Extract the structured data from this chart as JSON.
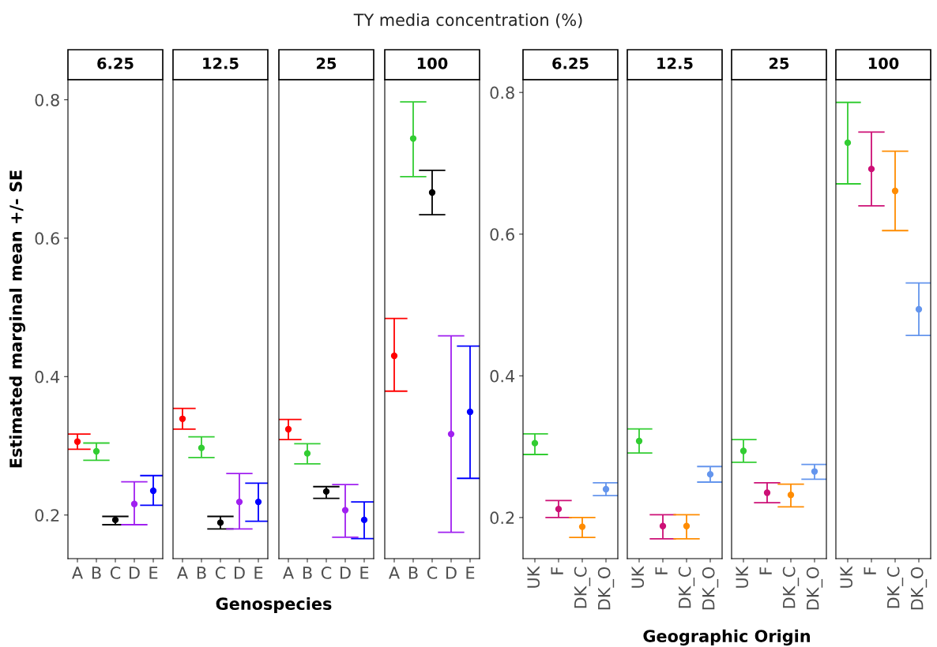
{
  "chart_data": [
    {
      "type": "scatter",
      "subtitle": "6.25",
      "ylabel": "Estimated marginal mean +/- SE",
      "xlabel": "Genospecies",
      "categories": [
        "A",
        "B",
        "C",
        "D",
        "E"
      ],
      "values": [
        0.306,
        0.292,
        0.193,
        0.216,
        0.235
      ],
      "errors": [
        [
          0.295,
          0.317
        ],
        [
          0.279,
          0.304
        ],
        [
          0.186,
          0.198
        ],
        [
          0.186,
          0.248
        ],
        [
          0.214,
          0.257
        ]
      ],
      "colors": [
        "#ff0000",
        "#32cd32",
        "#000000",
        "#a020f0",
        "#0000ff"
      ],
      "ylim": [
        0.137,
        0.829
      ],
      "yticks": [
        0.2,
        0.4,
        0.6,
        0.8
      ],
      "marker": "circle",
      "grid": false,
      "legend": false
    },
    {
      "type": "scatter",
      "subtitle": "12.5",
      "categories": [
        "A",
        "B",
        "C",
        "D",
        "E"
      ],
      "values": [
        0.339,
        0.297,
        0.189,
        0.219,
        0.219
      ],
      "errors": [
        [
          0.324,
          0.354
        ],
        [
          0.283,
          0.313
        ],
        [
          0.18,
          0.198
        ],
        [
          0.18,
          0.26
        ],
        [
          0.191,
          0.246
        ]
      ],
      "colors": [
        "#ff0000",
        "#32cd32",
        "#000000",
        "#a020f0",
        "#0000ff"
      ],
      "ylim": [
        0.137,
        0.829
      ],
      "yticks": [
        0.2,
        0.4,
        0.6,
        0.8
      ],
      "tick_labels": "x",
      "marker": "circle",
      "grid": false,
      "legend": false
    },
    {
      "type": "scatter",
      "subtitle": "25",
      "categories": [
        "A",
        "B",
        "C",
        "D",
        "E"
      ],
      "values": [
        0.324,
        0.289,
        0.234,
        0.207,
        0.193
      ],
      "errors": [
        [
          0.309,
          0.338
        ],
        [
          0.274,
          0.303
        ],
        [
          0.224,
          0.241
        ],
        [
          0.168,
          0.244
        ],
        [
          0.166,
          0.219
        ]
      ],
      "colors": [
        "#ff0000",
        "#32cd32",
        "#000000",
        "#a020f0",
        "#0000ff"
      ],
      "ylim": [
        0.137,
        0.829
      ],
      "yticks": [
        0.2,
        0.4,
        0.6,
        0.8
      ],
      "tick_labels": "x",
      "marker": "circle",
      "grid": false,
      "legend": false
    },
    {
      "type": "scatter",
      "title": "TY media concentration (%)",
      "subtitle": "100",
      "categories": [
        "A",
        "B",
        "C",
        "D",
        "E"
      ],
      "values": [
        0.43,
        0.744,
        0.666,
        0.317,
        0.349
      ],
      "errors": [
        [
          0.379,
          0.484
        ],
        [
          0.689,
          0.797
        ],
        [
          0.634,
          0.698
        ],
        [
          0.175,
          0.459
        ],
        [
          0.253,
          0.444
        ]
      ],
      "colors": [
        "#ff0000",
        "#32cd32",
        "#000000",
        "#a020f0",
        "#0000ff"
      ],
      "ylim": [
        0.137,
        0.829
      ],
      "yticks": [
        0.2,
        0.4,
        0.6,
        0.8
      ],
      "tick_labels": "x",
      "marker": "circle",
      "grid": false,
      "legend": false
    },
    {
      "type": "scatter",
      "subtitle": "6.25",
      "xlabel": "Geographic Origin",
      "categories": [
        "UK",
        "F",
        "DK_C",
        "DK_O"
      ],
      "values": [
        0.305,
        0.212,
        0.187,
        0.24
      ],
      "errors": [
        [
          0.289,
          0.318
        ],
        [
          0.2,
          0.224
        ],
        [
          0.172,
          0.2
        ],
        [
          0.231,
          0.249
        ]
      ],
      "colors": [
        "#32cd32",
        "#cd1076",
        "#ff8c00",
        "#6495ed"
      ],
      "ylim": [
        0.142,
        0.818
      ],
      "yticks": [
        0.2,
        0.4,
        0.6,
        0.8
      ],
      "marker": "circle",
      "grid": false,
      "legend": false
    },
    {
      "type": "scatter",
      "subtitle": "12.5",
      "categories": [
        "UK",
        "F",
        "DK_C",
        "DK_O"
      ],
      "values": [
        0.308,
        0.188,
        0.188,
        0.261
      ],
      "errors": [
        [
          0.291,
          0.325
        ],
        [
          0.17,
          0.204
        ],
        [
          0.17,
          0.204
        ],
        [
          0.25,
          0.272
        ]
      ],
      "colors": [
        "#32cd32",
        "#cd1076",
        "#ff8c00",
        "#6495ed"
      ],
      "ylim": [
        0.142,
        0.818
      ],
      "yticks": [
        0.2,
        0.4,
        0.6,
        0.8
      ],
      "tick_labels": "x",
      "marker": "circle",
      "grid": false,
      "legend": false
    },
    {
      "type": "scatter",
      "subtitle": "25",
      "categories": [
        "UK",
        "F",
        "DK_C",
        "DK_O"
      ],
      "values": [
        0.294,
        0.235,
        0.232,
        0.265
      ],
      "errors": [
        [
          0.278,
          0.31
        ],
        [
          0.221,
          0.249
        ],
        [
          0.215,
          0.247
        ],
        [
          0.254,
          0.275
        ]
      ],
      "colors": [
        "#32cd32",
        "#cd1076",
        "#ff8c00",
        "#6495ed"
      ],
      "ylim": [
        0.142,
        0.818
      ],
      "yticks": [
        0.2,
        0.4,
        0.6,
        0.8
      ],
      "tick_labels": "x",
      "marker": "circle",
      "grid": false,
      "legend": false
    },
    {
      "type": "scatter",
      "subtitle": "100",
      "categories": [
        "UK",
        "F",
        "DK_C",
        "DK_O"
      ],
      "values": [
        0.729,
        0.692,
        0.661,
        0.494
      ],
      "errors": [
        [
          0.671,
          0.786
        ],
        [
          0.64,
          0.744
        ],
        [
          0.605,
          0.717
        ],
        [
          0.457,
          0.531
        ]
      ],
      "colors": [
        "#32cd32",
        "#cd1076",
        "#ff8c00",
        "#6495ed"
      ],
      "ylim": [
        0.142,
        0.818
      ],
      "yticks": [
        0.2,
        0.4,
        0.6,
        0.8
      ],
      "tick_labels": "x",
      "marker": "circle",
      "grid": false,
      "legend": false
    }
  ]
}
